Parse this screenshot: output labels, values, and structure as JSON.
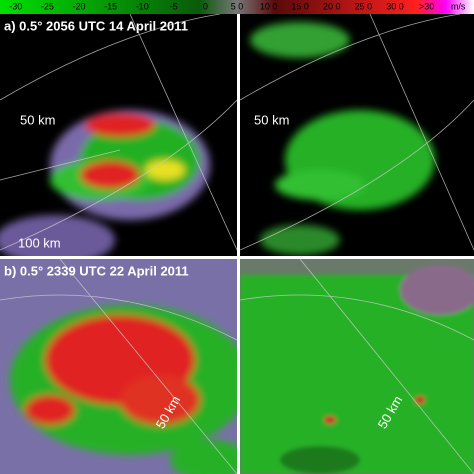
{
  "colorbar": {
    "labels": [
      "-30",
      "-25",
      "-20",
      "-15",
      "-10",
      "-5",
      "0",
      "5 0",
      "10 0",
      "15 0",
      "20 0",
      "25 0",
      "30 0",
      ">30",
      "m/s"
    ]
  },
  "panels": [
    {
      "label": "a) 0.5° 2056 UTC 14 April 2011",
      "range_labels": [
        "50 km",
        "100 km"
      ]
    },
    {
      "range_labels": [
        "50 km"
      ]
    },
    {
      "label": "b) 0.5° 2339 UTC 22 April 2011",
      "range_labels": [
        "50 km"
      ]
    },
    {
      "range_labels": [
        "50 km"
      ]
    }
  ]
}
